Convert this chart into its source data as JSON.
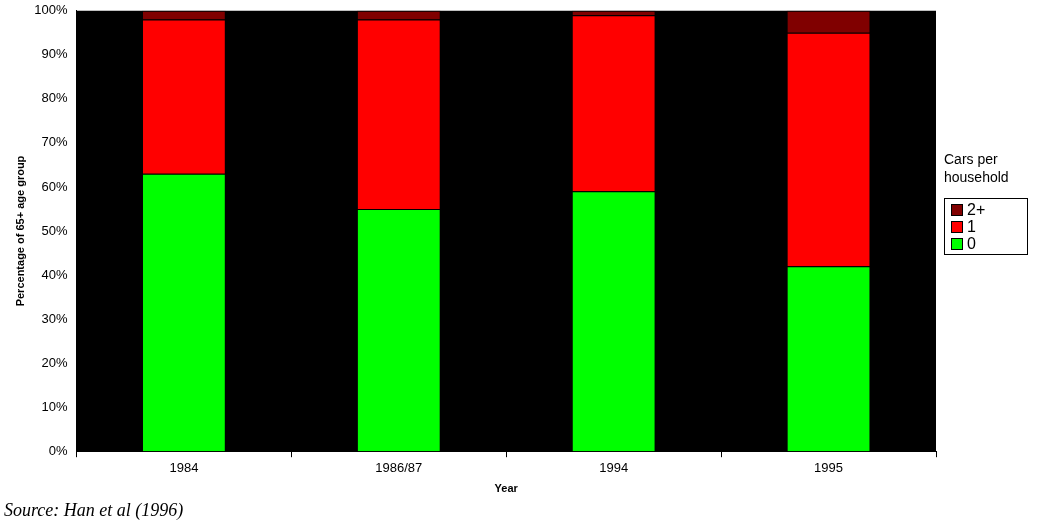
{
  "chart_data": {
    "type": "bar",
    "stacked": true,
    "xlabel": "Year",
    "ylabel": "Percentage of 65+ age group",
    "legend_title": "Cars per household",
    "legend": "right",
    "categories": [
      "1984",
      "1986/87",
      "1994",
      "1995"
    ],
    "series": [
      {
        "name": "0",
        "color": "#00ff00",
        "values": [
          63,
          55,
          59,
          42
        ]
      },
      {
        "name": "1",
        "color": "#ff0000",
        "values": [
          35,
          43,
          40,
          53
        ]
      },
      {
        "name": "2+",
        "color": "#800000",
        "values": [
          2,
          2,
          1,
          5
        ]
      }
    ],
    "ylim": [
      0,
      100
    ],
    "yticks": [
      {
        "value": 0,
        "label": "0%"
      },
      {
        "value": 10,
        "label": "10%"
      },
      {
        "value": 20,
        "label": "20%"
      },
      {
        "value": 30,
        "label": "30%"
      },
      {
        "value": 40,
        "label": "40%"
      },
      {
        "value": 50,
        "label": "50%"
      },
      {
        "value": 60,
        "label": "60%"
      },
      {
        "value": 70,
        "label": "70%"
      },
      {
        "value": 80,
        "label": "80%"
      },
      {
        "value": 90,
        "label": "90%"
      },
      {
        "value": 100,
        "label": "100%"
      }
    ],
    "grid": false,
    "annotations": [
      "Source: Han et al (1996)"
    ]
  }
}
